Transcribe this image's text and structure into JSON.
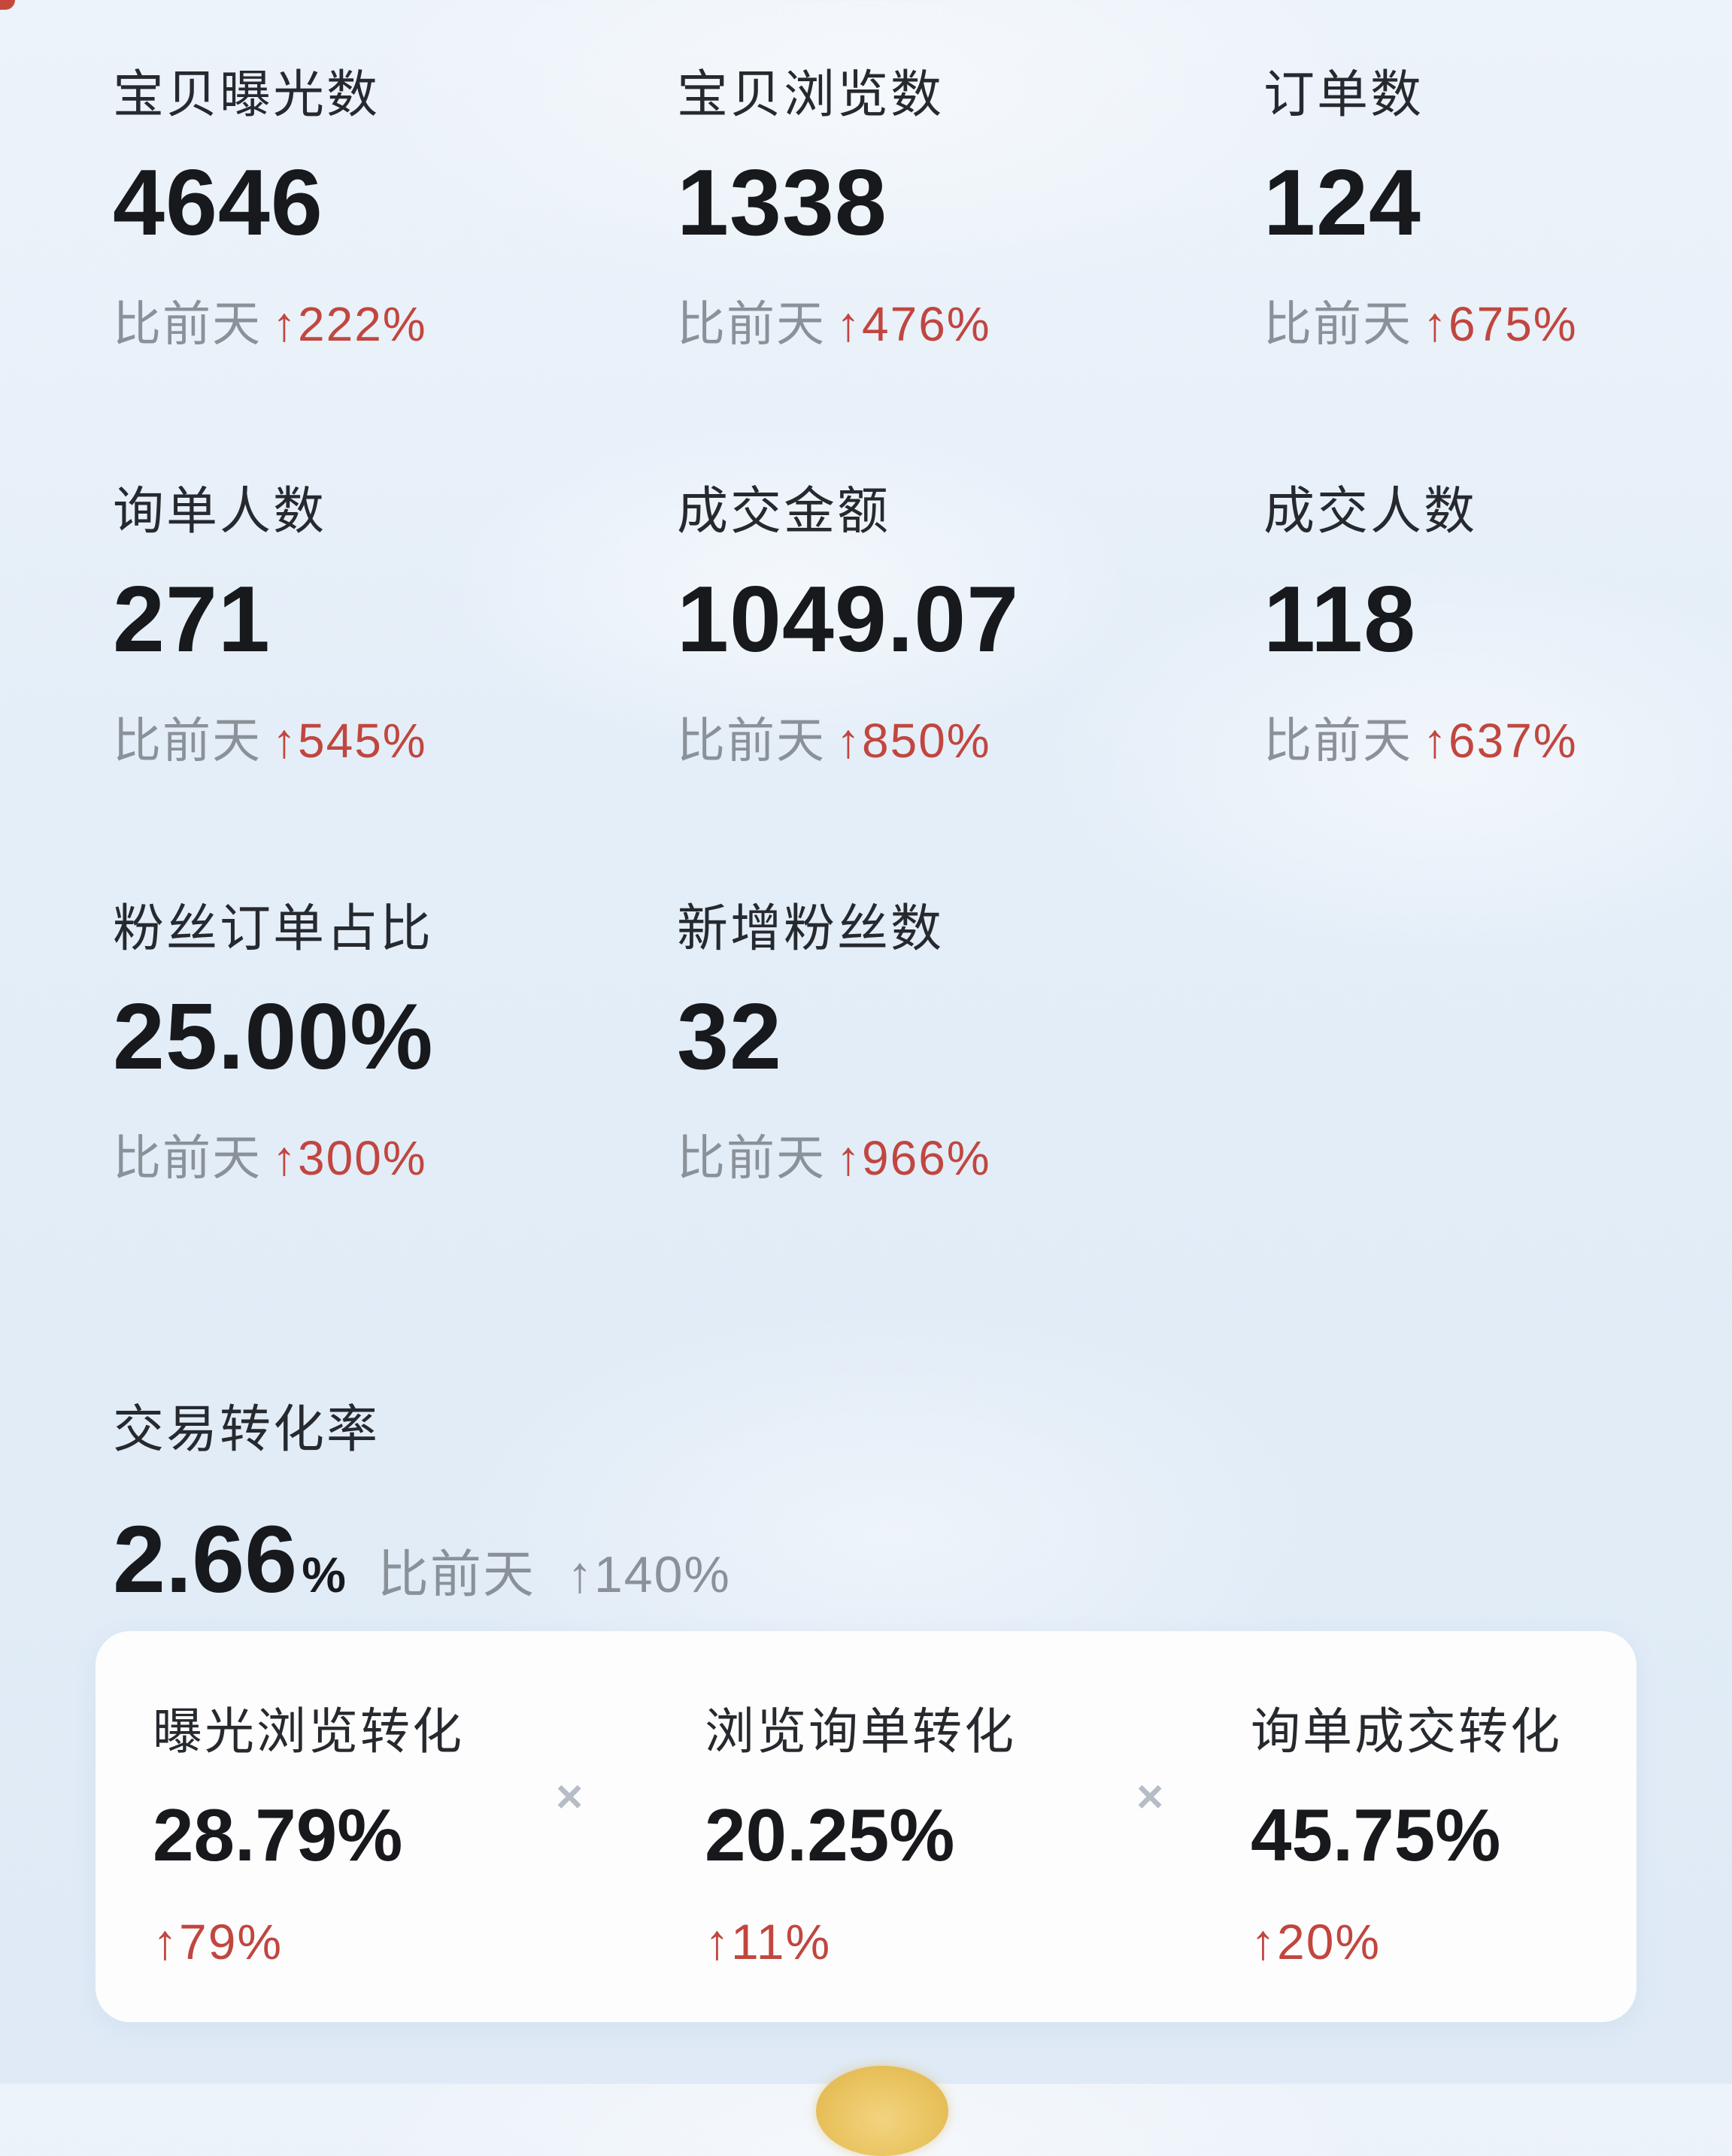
{
  "colors": {
    "background": "#e4eef8",
    "card": "#fdfdfe",
    "text_primary": "#17191d",
    "text_muted": "#8b9198",
    "increase_red": "#c1463f",
    "separator_gray": "#b6bdc6",
    "fab_yellow": "#e9c35f"
  },
  "metrics": [
    {
      "label": "宝贝曝光数",
      "value": "4646",
      "compare_prefix": "比前天",
      "change": "↑222%"
    },
    {
      "label": "宝贝浏览数",
      "value": "1338",
      "compare_prefix": "比前天",
      "change": "↑476%"
    },
    {
      "label": "订单数",
      "value": "124",
      "compare_prefix": "比前天",
      "change": "↑675%"
    },
    {
      "label": "询单人数",
      "value": "271",
      "compare_prefix": "比前天",
      "change": "↑545%"
    },
    {
      "label": "成交金额",
      "value": "1049.07",
      "compare_prefix": "比前天",
      "change": "↑850%"
    },
    {
      "label": "成交人数",
      "value": "118",
      "compare_prefix": "比前天",
      "change": "↑637%"
    },
    {
      "label": "粉丝订单占比",
      "value": "25.00%",
      "compare_prefix": "比前天",
      "change": "↑300%"
    },
    {
      "label": "新增粉丝数",
      "value": "32",
      "compare_prefix": "比前天",
      "change": "↑966%"
    }
  ],
  "conversion": {
    "label": "交易转化率",
    "value": "2.66",
    "unit": "%",
    "compare_prefix": "比前天",
    "change": "↑140%"
  },
  "funnel": {
    "separator": "×",
    "items": [
      {
        "label": "曝光浏览转化",
        "value": "28.79%",
        "change": "↑79%"
      },
      {
        "label": "浏览询单转化",
        "value": "20.25%",
        "change": "↑11%"
      },
      {
        "label": "询单成交转化",
        "value": "45.75%",
        "change": "↑20%"
      }
    ]
  }
}
